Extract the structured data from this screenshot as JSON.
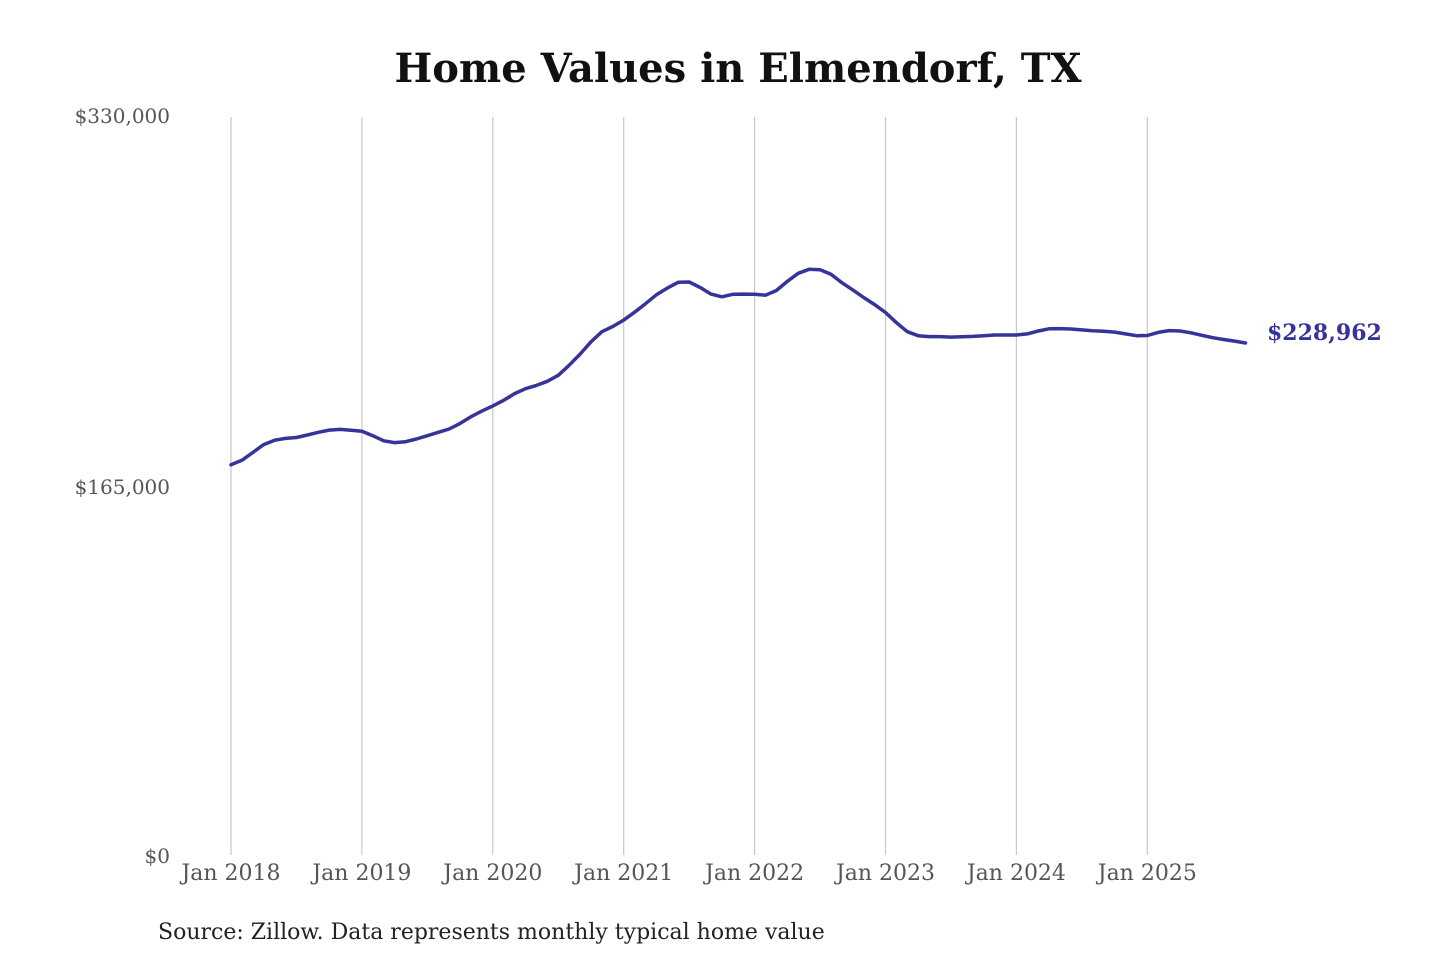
{
  "chart_data": {
    "type": "line",
    "title": "Home Values in Elmendorf, TX",
    "xlabel": "",
    "ylabel": "",
    "ylim": [
      0,
      330000
    ],
    "y_ticks": [
      "$330,000",
      "$165,000",
      "$0"
    ],
    "x_ticks": [
      "Jan 2018",
      "Jan 2019",
      "Jan 2020",
      "Jan 2021",
      "Jan 2022",
      "Jan 2023",
      "Jan 2024",
      "Jan 2025"
    ],
    "grid": "vertical lines at January of each year",
    "legend": "none",
    "end_label": "$228,962",
    "series": [
      {
        "color": "#36349b",
        "points": [
          [
            "2018-01",
            174500
          ],
          [
            "2018-02",
            176500
          ],
          [
            "2018-03",
            180000
          ],
          [
            "2018-04",
            183500
          ],
          [
            "2018-05",
            185500
          ],
          [
            "2018-06",
            186300
          ],
          [
            "2018-07",
            186700
          ],
          [
            "2018-08",
            187800
          ],
          [
            "2018-09",
            189000
          ],
          [
            "2018-10",
            190000
          ],
          [
            "2018-11",
            190300
          ],
          [
            "2018-12",
            189900
          ],
          [
            "2019-01",
            189500
          ],
          [
            "2019-02",
            187500
          ],
          [
            "2019-03",
            185200
          ],
          [
            "2019-04",
            184400
          ],
          [
            "2019-05",
            184800
          ],
          [
            "2019-06",
            186000
          ],
          [
            "2019-07",
            187500
          ],
          [
            "2019-08",
            189000
          ],
          [
            "2019-09",
            190500
          ],
          [
            "2019-10",
            193000
          ],
          [
            "2019-11",
            196000
          ],
          [
            "2019-12",
            198500
          ],
          [
            "2020-01",
            200800
          ],
          [
            "2020-02",
            203300
          ],
          [
            "2020-03",
            206300
          ],
          [
            "2020-04",
            208500
          ],
          [
            "2020-05",
            210000
          ],
          [
            "2020-06",
            211800
          ],
          [
            "2020-07",
            214500
          ],
          [
            "2020-08",
            219000
          ],
          [
            "2020-09",
            224000
          ],
          [
            "2020-10",
            229500
          ],
          [
            "2020-11",
            234000
          ],
          [
            "2020-12",
            236300
          ],
          [
            "2021-01",
            239200
          ],
          [
            "2021-02",
            242700
          ],
          [
            "2021-03",
            246500
          ],
          [
            "2021-04",
            250500
          ],
          [
            "2021-05",
            253500
          ],
          [
            "2021-06",
            256100
          ],
          [
            "2021-07",
            256200
          ],
          [
            "2021-08",
            253800
          ],
          [
            "2021-09",
            250800
          ],
          [
            "2021-10",
            249600
          ],
          [
            "2021-11",
            250700
          ],
          [
            "2021-12",
            250800
          ],
          [
            "2022-01",
            250700
          ],
          [
            "2022-02",
            250300
          ],
          [
            "2022-03",
            252400
          ],
          [
            "2022-04",
            256500
          ],
          [
            "2022-05",
            260100
          ],
          [
            "2022-06",
            261900
          ],
          [
            "2022-07",
            261700
          ],
          [
            "2022-08",
            259700
          ],
          [
            "2022-09",
            255900
          ],
          [
            "2022-10",
            252700
          ],
          [
            "2022-11",
            249300
          ],
          [
            "2022-12",
            246100
          ],
          [
            "2023-01",
            242600
          ],
          [
            "2023-02",
            238000
          ],
          [
            "2023-03",
            234000
          ],
          [
            "2023-04",
            232200
          ],
          [
            "2023-05",
            231800
          ],
          [
            "2023-06",
            231800
          ],
          [
            "2023-07",
            231600
          ],
          [
            "2023-08",
            231700
          ],
          [
            "2023-09",
            231900
          ],
          [
            "2023-10",
            232200
          ],
          [
            "2023-11",
            232500
          ],
          [
            "2023-12",
            232500
          ],
          [
            "2024-01",
            232500
          ],
          [
            "2024-02",
            233000
          ],
          [
            "2024-03",
            234300
          ],
          [
            "2024-04",
            235300
          ],
          [
            "2024-05",
            235400
          ],
          [
            "2024-06",
            235200
          ],
          [
            "2024-07",
            234800
          ],
          [
            "2024-08",
            234400
          ],
          [
            "2024-09",
            234200
          ],
          [
            "2024-10",
            233800
          ],
          [
            "2024-11",
            233000
          ],
          [
            "2024-12",
            232200
          ],
          [
            "2025-01",
            232300
          ],
          [
            "2025-02",
            233700
          ],
          [
            "2025-03",
            234500
          ],
          [
            "2025-04",
            234300
          ],
          [
            "2025-05",
            233500
          ],
          [
            "2025-06",
            232400
          ],
          [
            "2025-07",
            231300
          ],
          [
            "2025-08",
            230500
          ],
          [
            "2025-09",
            229800
          ],
          [
            "2025-10",
            228962
          ]
        ]
      }
    ]
  },
  "source_note": "Source: Zillow. Data represents monthly typical home value"
}
